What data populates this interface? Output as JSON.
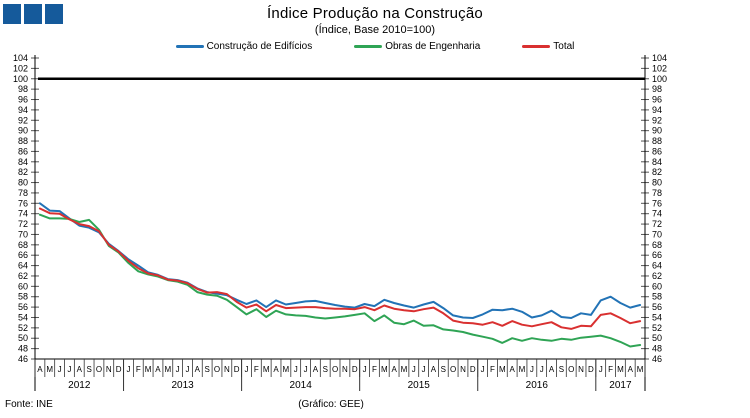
{
  "header": {
    "title": "Índice Produção na Construção",
    "subtitle": "(Índice, Base 2010=100)"
  },
  "branding": {
    "logo_squares_count": 3,
    "logo_color": "#155a9b"
  },
  "legend": {
    "items": [
      {
        "label": "Construção de Edifícios",
        "color": "#2273b6"
      },
      {
        "label": "Obras de Engenharia",
        "color": "#2fa455"
      },
      {
        "label": "Total",
        "color": "#d93030"
      }
    ]
  },
  "footer": {
    "source": "Fonte: INE",
    "credit": "(Gráfico: GEE)"
  },
  "chart_data": {
    "type": "line",
    "title": "Índice Produção na Construção",
    "subtitle": "(Índice, Base 2010=100)",
    "ylabel": "",
    "xlabel": "",
    "ylim": [
      46,
      104
    ],
    "ytick_step": 2,
    "baseline_value": 100,
    "baseline_color": "#000000",
    "grid": false,
    "legend_position": "top",
    "axis_color": "#000000",
    "tick_color": "#555555",
    "years": [
      {
        "label": "2012",
        "months": [
          "A",
          "M",
          "J",
          "J",
          "A",
          "S",
          "O",
          "N",
          "D"
        ]
      },
      {
        "label": "2013",
        "months": [
          "J",
          "F",
          "M",
          "A",
          "M",
          "J",
          "J",
          "A",
          "S",
          "O",
          "N",
          "D"
        ]
      },
      {
        "label": "2014",
        "months": [
          "J",
          "F",
          "M",
          "A",
          "M",
          "J",
          "J",
          "A",
          "S",
          "O",
          "N",
          "D"
        ]
      },
      {
        "label": "2015",
        "months": [
          "J",
          "F",
          "M",
          "A",
          "M",
          "J",
          "J",
          "A",
          "S",
          "O",
          "N",
          "D"
        ]
      },
      {
        "label": "2016",
        "months": [
          "J",
          "F",
          "M",
          "A",
          "M",
          "J",
          "J",
          "A",
          "S",
          "O",
          "N",
          "D"
        ]
      },
      {
        "label": "2017",
        "months": [
          "J",
          "F",
          "M",
          "A",
          "M"
        ]
      }
    ],
    "series": [
      {
        "name": "Construção de Edifícios",
        "color": "#2273b6",
        "values": [
          76.0,
          74.6,
          74.5,
          73.1,
          71.7,
          71.3,
          70.4,
          68.2,
          66.8,
          65.2,
          64.0,
          62.7,
          62.2,
          61.4,
          61.2,
          60.7,
          59.6,
          58.9,
          58.6,
          58.3,
          57.4,
          56.6,
          57.3,
          56.0,
          57.3,
          56.5,
          56.8,
          57.1,
          57.2,
          56.8,
          56.4,
          56.1,
          55.9,
          56.6,
          56.2,
          57.4,
          56.8,
          56.3,
          55.9,
          56.5,
          57.0,
          55.8,
          54.4,
          54.0,
          53.9,
          54.6,
          55.5,
          55.4,
          55.7,
          55.1,
          54.0,
          54.4,
          55.3,
          54.1,
          53.9,
          54.8,
          54.5,
          57.3,
          58.0,
          56.8,
          55.9,
          56.4
        ]
      },
      {
        "name": "Obras de Engenharia",
        "color": "#2fa455",
        "values": [
          73.8,
          73.1,
          73.1,
          73.0,
          72.4,
          72.8,
          70.9,
          67.8,
          66.5,
          64.5,
          62.9,
          62.3,
          61.9,
          61.2,
          60.9,
          60.3,
          58.9,
          58.4,
          58.2,
          57.4,
          56.0,
          54.6,
          55.6,
          54.1,
          55.3,
          54.6,
          54.4,
          54.3,
          54.0,
          53.8,
          54.0,
          54.2,
          54.5,
          54.8,
          53.3,
          54.4,
          53.0,
          52.7,
          53.4,
          52.4,
          52.5,
          51.7,
          51.5,
          51.2,
          50.7,
          50.3,
          49.9,
          49.1,
          50.0,
          49.5,
          50.0,
          49.7,
          49.5,
          49.9,
          49.7,
          50.1,
          50.3,
          50.5,
          50.0,
          49.3,
          48.4,
          48.7
        ]
      },
      {
        "name": "Total",
        "color": "#d93030",
        "values": [
          75.0,
          74.1,
          74.0,
          72.9,
          72.0,
          71.6,
          70.6,
          68.0,
          66.7,
          64.9,
          63.5,
          62.5,
          62.1,
          61.3,
          61.1,
          60.6,
          59.5,
          58.8,
          58.9,
          58.5,
          57.0,
          55.9,
          56.5,
          55.2,
          56.4,
          55.8,
          55.9,
          56.0,
          56.0,
          55.8,
          55.7,
          55.7,
          55.6,
          56.0,
          55.4,
          56.3,
          55.7,
          55.4,
          55.2,
          55.6,
          55.9,
          54.8,
          53.4,
          53.0,
          52.9,
          52.6,
          53.1,
          52.4,
          53.3,
          52.6,
          52.3,
          52.7,
          53.1,
          52.1,
          51.8,
          52.4,
          52.3,
          54.5,
          54.8,
          53.9,
          52.9,
          53.3
        ]
      }
    ]
  }
}
